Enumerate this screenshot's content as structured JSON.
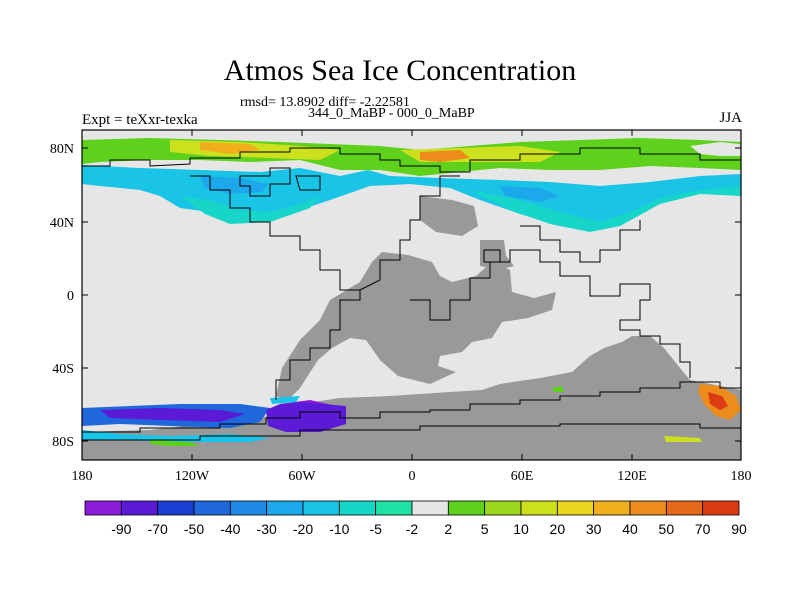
{
  "header": {
    "title": "Atmos Sea Ice Concentration",
    "stats": "rmsd= 13.8902 diff= -2.22581",
    "experiment": "Expt = teXxr-texka",
    "period": "344_0_MaBP - 000_0_MaBP",
    "season": "JJA"
  },
  "axes": {
    "x_ticks": [
      "180",
      "120W",
      "60W",
      "0",
      "60E",
      "120E",
      "180"
    ],
    "y_ticks": [
      "80N",
      "40N",
      "0",
      "40S",
      "80S"
    ]
  },
  "colorbar": {
    "labels": [
      "-90",
      "-70",
      "-50",
      "-40",
      "-30",
      "-20",
      "-10",
      "-5",
      "-2",
      "2",
      "5",
      "10",
      "20",
      "30",
      "40",
      "50",
      "70",
      "90"
    ],
    "colors": [
      "#8c1ad9",
      "#5a1ad6",
      "#1c3fd1",
      "#1f68dc",
      "#1f8ae6",
      "#1ea8ec",
      "#19c4e6",
      "#17d6c9",
      "#1fe0a5",
      "#e6e6e6",
      "#5ed11c",
      "#9ad61c",
      "#cde01e",
      "#ecd621",
      "#f0b01e",
      "#ec8c1c",
      "#e4681a",
      "#dc3c12"
    ],
    "land_color": "#999999",
    "ocean_color": "#e6e6e6"
  }
}
